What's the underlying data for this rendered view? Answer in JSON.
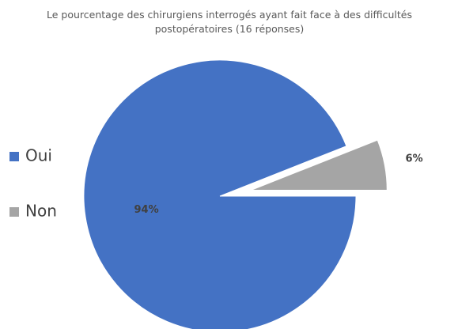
{
  "chart_data": {
    "type": "pie",
    "title": "Le pourcentage des chirurgiens interrogés ayant fait face à des difficultés postopératoires (16 réponses)",
    "categories": [
      "Oui",
      "Non"
    ],
    "values": [
      94,
      6
    ],
    "value_labels": [
      "94%",
      "6%"
    ],
    "colors": [
      "#4472c4",
      "#a5a5a5"
    ],
    "exploded": [
      false,
      true
    ],
    "legend": "left"
  }
}
